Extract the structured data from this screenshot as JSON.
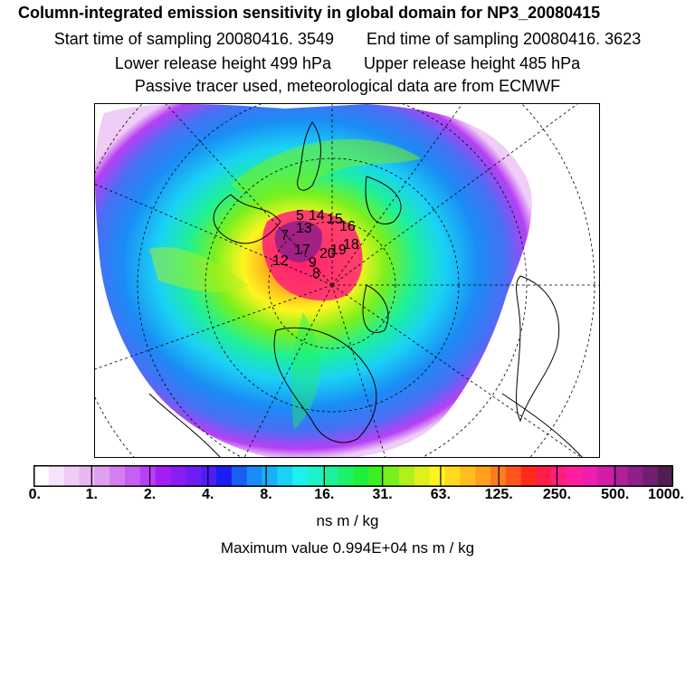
{
  "header": {
    "title": "Column-integrated emission sensitivity in global domain for NP3_20080415",
    "start_label": "Start time of sampling 20080416.  3549",
    "end_label": "End time of sampling 20080416.  3623",
    "lower_label": "Lower release height  499 hPa",
    "upper_label": "Upper release height  485 hPa",
    "note": "Passive tracer used, meteorological data are from ECMWF"
  },
  "map": {
    "release_labels": [
      "5",
      "14",
      "15",
      "16",
      "13",
      "7",
      "12",
      "17",
      "20",
      "19",
      "18",
      "9",
      "8"
    ]
  },
  "colorbar": {
    "tick_labels": [
      "0.",
      "1.",
      "2.",
      "4.",
      "8.",
      "16.",
      "31.",
      "63.",
      "125.",
      "250.",
      "500.",
      "1000."
    ],
    "colors": [
      "#ffffff",
      "#f7e3fb",
      "#f0cdf6",
      "#e8b6f2",
      "#dfa0ef",
      "#d37ff0",
      "#c660f2",
      "#b740f4",
      "#a41ff5",
      "#8a1ef5",
      "#6e1ef5",
      "#4a1ef5",
      "#1a1ef5",
      "#1a5ef5",
      "#1a8cf5",
      "#1ab0f5",
      "#1ad2f5",
      "#1ef0f0",
      "#1ef0c8",
      "#1ef09a",
      "#1ef06a",
      "#1ef03a",
      "#3af01e",
      "#78f01e",
      "#b0f01e",
      "#def01e",
      "#fff51e",
      "#ffda1e",
      "#ffbe1e",
      "#ffa01e",
      "#ff7c1e",
      "#ff561e",
      "#ff2a1e",
      "#ff1e4a",
      "#ff1e7a",
      "#ff1ea0",
      "#f01eb0",
      "#d01ea8",
      "#b01e9a",
      "#901e88",
      "#701e70",
      "#501e50"
    ]
  },
  "units": "ns m / kg",
  "maximum": "Maximum value  0.994E+04 ns m / kg"
}
